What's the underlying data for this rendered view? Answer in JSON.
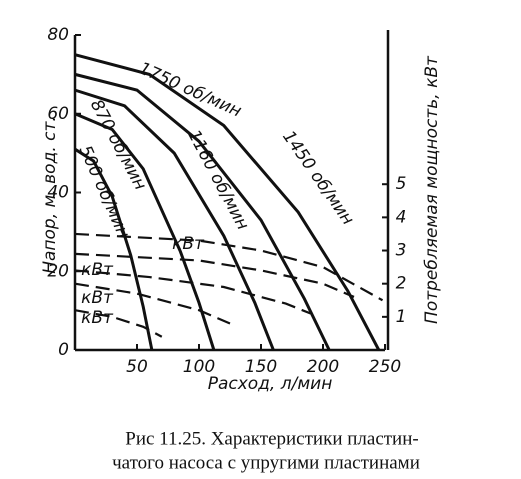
{
  "chart_data": {
    "type": "line",
    "x_label": "Расход, л/мин",
    "y_label": "Напор, м. вод. ст.",
    "y2_label": "Потребляемая мощность, кВт",
    "xlim": [
      0,
      250
    ],
    "xticks": [
      50,
      100,
      150,
      200,
      250
    ],
    "ylim": [
      0,
      80
    ],
    "yticks": [
      0,
      20,
      40,
      60,
      80
    ],
    "y2lim": [
      0,
      9.5
    ],
    "y2ticks": [
      1,
      2,
      3,
      4,
      5
    ],
    "color": "#111111",
    "series": [
      {
        "name": "1750 об/мин",
        "x": [
          0,
          60,
          120,
          180,
          220,
          245
        ],
        "values": [
          75,
          70,
          57,
          35,
          15,
          0
        ]
      },
      {
        "name": "1450 об/мин",
        "x": [
          0,
          50,
          100,
          150,
          185,
          205
        ],
        "values": [
          70,
          66,
          53,
          33,
          13,
          0
        ]
      },
      {
        "name": "1160 об/мин",
        "x": [
          0,
          40,
          80,
          120,
          145,
          160
        ],
        "values": [
          66,
          62,
          50,
          29,
          12,
          0
        ]
      },
      {
        "name": "870 об/мин",
        "x": [
          0,
          30,
          55,
          85,
          100,
          112
        ],
        "values": [
          60,
          56,
          46,
          25,
          12,
          0
        ]
      },
      {
        "name": "500 об/мин",
        "x": [
          0,
          15,
          30,
          45,
          55,
          62
        ],
        "values": [
          51,
          48,
          39,
          24,
          11,
          0
        ]
      },
      {
        "axis": "y2",
        "dashed": true,
        "x": [
          0,
          100,
          150,
          200,
          248
        ],
        "values": [
          3.5,
          3.3,
          3.0,
          2.5,
          1.5
        ]
      },
      {
        "axis": "y2",
        "dashed": true,
        "x": [
          0,
          100,
          150,
          200,
          225
        ],
        "values": [
          2.9,
          2.7,
          2.4,
          2.0,
          1.6
        ]
      },
      {
        "axis": "y2",
        "dashed": true,
        "x": [
          0,
          60,
          120,
          170,
          190
        ],
        "values": [
          2.4,
          2.2,
          1.9,
          1.4,
          1.1
        ]
      },
      {
        "axis": "y2",
        "dashed": true,
        "x": [
          0,
          50,
          100,
          125
        ],
        "values": [
          2.0,
          1.7,
          1.2,
          0.8
        ]
      },
      {
        "axis": "y2",
        "dashed": true,
        "x": [
          0,
          30,
          55,
          70
        ],
        "values": [
          1.2,
          1.0,
          0.7,
          0.4
        ]
      }
    ],
    "power_labels": [
      "кВт",
      "кВт",
      "кВт",
      "кВт"
    ],
    "caption": [
      "Рис  11.25. Характеристики пластин-",
      "чатого насоса с упругими пластинами"
    ]
  }
}
